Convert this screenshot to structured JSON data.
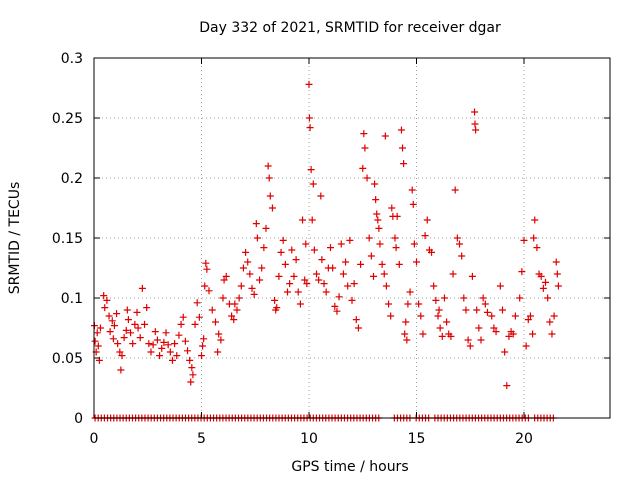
{
  "chart_data": {
    "type": "scatter",
    "title": "Day 332 of 2021, SRMTID for receiver dgar",
    "xlabel": "GPS time / hours",
    "ylabel": "SRMTID / TECUs",
    "xlim": [
      0,
      24
    ],
    "ylim": [
      0,
      0.3
    ],
    "xticks": [
      0,
      5,
      10,
      15,
      20
    ],
    "xtick_labels": [
      "0",
      "5",
      "10",
      "15",
      "20"
    ],
    "yticks": [
      0,
      0.05,
      0.1,
      0.15,
      0.2,
      0.25,
      0.3
    ],
    "ytick_labels": [
      "0",
      "0.05",
      "0.1",
      "0.15",
      "0.2",
      "0.25",
      "0.3"
    ],
    "grid": true,
    "marker": "+",
    "colors": {
      "series": "#e00000",
      "grid": "#a0a0a0",
      "axes": "#000000"
    },
    "series": [
      {
        "name": "SRMTID",
        "points": [
          [
            0.02,
            0.077
          ],
          [
            0.05,
            0.064
          ],
          [
            0.1,
            0.055
          ],
          [
            0.15,
            0.071
          ],
          [
            0.2,
            0.06
          ],
          [
            0.25,
            0.048
          ],
          [
            0.3,
            0.075
          ],
          [
            0.45,
            0.102
          ],
          [
            0.5,
            0.092
          ],
          [
            0.6,
            0.098
          ],
          [
            0.7,
            0.085
          ],
          [
            0.75,
            0.072
          ],
          [
            0.85,
            0.081
          ],
          [
            0.9,
            0.066
          ],
          [
            0.95,
            0.077
          ],
          [
            1.05,
            0.087
          ],
          [
            1.1,
            0.062
          ],
          [
            1.2,
            0.055
          ],
          [
            1.25,
            0.04
          ],
          [
            1.3,
            0.052
          ],
          [
            1.4,
            0.067
          ],
          [
            1.5,
            0.073
          ],
          [
            1.55,
            0.09
          ],
          [
            1.6,
            0.082
          ],
          [
            1.7,
            0.071
          ],
          [
            1.8,
            0.062
          ],
          [
            1.9,
            0.078
          ],
          [
            2.0,
            0.088
          ],
          [
            2.05,
            0.075
          ],
          [
            2.15,
            0.067
          ],
          [
            2.25,
            0.108
          ],
          [
            2.35,
            0.078
          ],
          [
            2.45,
            0.092
          ],
          [
            2.55,
            0.062
          ],
          [
            2.65,
            0.055
          ],
          [
            2.75,
            0.061
          ],
          [
            2.85,
            0.072
          ],
          [
            2.95,
            0.065
          ],
          [
            3.05,
            0.052
          ],
          [
            3.15,
            0.058
          ],
          [
            3.25,
            0.063
          ],
          [
            3.35,
            0.071
          ],
          [
            3.45,
            0.061
          ],
          [
            3.55,
            0.055
          ],
          [
            3.65,
            0.048
          ],
          [
            3.75,
            0.062
          ],
          [
            3.85,
            0.052
          ],
          [
            3.95,
            0.069
          ],
          [
            4.05,
            0.078
          ],
          [
            4.15,
            0.084
          ],
          [
            4.25,
            0.064
          ],
          [
            4.35,
            0.056
          ],
          [
            4.45,
            0.048
          ],
          [
            4.5,
            0.03
          ],
          [
            4.55,
            0.042
          ],
          [
            4.6,
            0.036
          ],
          [
            4.7,
            0.078
          ],
          [
            4.8,
            0.096
          ],
          [
            4.9,
            0.084
          ],
          [
            5.0,
            0.052
          ],
          [
            5.05,
            0.06
          ],
          [
            5.1,
            0.066
          ],
          [
            5.15,
            0.11
          ],
          [
            5.2,
            0.129
          ],
          [
            5.25,
            0.124
          ],
          [
            5.35,
            0.106
          ],
          [
            5.5,
            0.09
          ],
          [
            5.65,
            0.08
          ],
          [
            5.75,
            0.055
          ],
          [
            5.8,
            0.07
          ],
          [
            5.9,
            0.065
          ],
          [
            6.0,
            0.1
          ],
          [
            6.05,
            0.115
          ],
          [
            6.15,
            0.118
          ],
          [
            6.3,
            0.095
          ],
          [
            6.4,
            0.085
          ],
          [
            6.5,
            0.082
          ],
          [
            6.55,
            0.095
          ],
          [
            6.65,
            0.09
          ],
          [
            6.75,
            0.1
          ],
          [
            6.85,
            0.11
          ],
          [
            6.95,
            0.125
          ],
          [
            7.05,
            0.138
          ],
          [
            7.15,
            0.13
          ],
          [
            7.25,
            0.12
          ],
          [
            7.35,
            0.108
          ],
          [
            7.45,
            0.103
          ],
          [
            7.55,
            0.162
          ],
          [
            7.6,
            0.15
          ],
          [
            7.7,
            0.115
          ],
          [
            7.8,
            0.125
          ],
          [
            7.9,
            0.142
          ],
          [
            8.0,
            0.158
          ],
          [
            8.1,
            0.21
          ],
          [
            8.15,
            0.2
          ],
          [
            8.2,
            0.185
          ],
          [
            8.3,
            0.175
          ],
          [
            8.4,
            0.098
          ],
          [
            8.45,
            0.09
          ],
          [
            8.5,
            0.092
          ],
          [
            8.6,
            0.118
          ],
          [
            8.7,
            0.138
          ],
          [
            8.8,
            0.148
          ],
          [
            8.9,
            0.128
          ],
          [
            9.0,
            0.105
          ],
          [
            9.1,
            0.112
          ],
          [
            9.2,
            0.14
          ],
          [
            9.3,
            0.118
          ],
          [
            9.4,
            0.132
          ],
          [
            9.5,
            0.105
          ],
          [
            9.6,
            0.095
          ],
          [
            9.7,
            0.165
          ],
          [
            9.8,
            0.115
          ],
          [
            9.85,
            0.145
          ],
          [
            9.9,
            0.112
          ],
          [
            10.0,
            0.278
          ],
          [
            10.02,
            0.25
          ],
          [
            10.05,
            0.242
          ],
          [
            10.1,
            0.207
          ],
          [
            10.15,
            0.165
          ],
          [
            10.2,
            0.195
          ],
          [
            10.25,
            0.14
          ],
          [
            10.35,
            0.12
          ],
          [
            10.45,
            0.115
          ],
          [
            10.55,
            0.185
          ],
          [
            10.6,
            0.132
          ],
          [
            10.7,
            0.112
          ],
          [
            10.8,
            0.105
          ],
          [
            10.9,
            0.125
          ],
          [
            11.0,
            0.142
          ],
          [
            11.1,
            0.125
          ],
          [
            11.2,
            0.093
          ],
          [
            11.3,
            0.089
          ],
          [
            11.4,
            0.101
          ],
          [
            11.5,
            0.145
          ],
          [
            11.6,
            0.12
          ],
          [
            11.7,
            0.13
          ],
          [
            11.8,
            0.11
          ],
          [
            11.9,
            0.148
          ],
          [
            12.0,
            0.098
          ],
          [
            12.1,
            0.112
          ],
          [
            12.2,
            0.082
          ],
          [
            12.3,
            0.075
          ],
          [
            12.4,
            0.128
          ],
          [
            12.5,
            0.208
          ],
          [
            12.55,
            0.237
          ],
          [
            12.6,
            0.225
          ],
          [
            12.7,
            0.2
          ],
          [
            12.8,
            0.15
          ],
          [
            12.9,
            0.135
          ],
          [
            13.0,
            0.118
          ],
          [
            13.05,
            0.195
          ],
          [
            13.1,
            0.182
          ],
          [
            13.15,
            0.17
          ],
          [
            13.2,
            0.165
          ],
          [
            13.25,
            0.158
          ],
          [
            13.3,
            0.145
          ],
          [
            13.4,
            0.128
          ],
          [
            13.5,
            0.12
          ],
          [
            13.55,
            0.235
          ],
          [
            13.6,
            0.11
          ],
          [
            13.7,
            0.095
          ],
          [
            13.8,
            0.085
          ],
          [
            13.85,
            0.175
          ],
          [
            13.9,
            0.168
          ],
          [
            14.0,
            0.15
          ],
          [
            14.05,
            0.142
          ],
          [
            14.1,
            0.168
          ],
          [
            14.2,
            0.128
          ],
          [
            14.3,
            0.24
          ],
          [
            14.35,
            0.225
          ],
          [
            14.4,
            0.212
          ],
          [
            14.45,
            0.07
          ],
          [
            14.5,
            0.08
          ],
          [
            14.55,
            0.065
          ],
          [
            14.6,
            0.095
          ],
          [
            14.7,
            0.105
          ],
          [
            14.8,
            0.19
          ],
          [
            14.85,
            0.178
          ],
          [
            14.9,
            0.145
          ],
          [
            15.0,
            0.13
          ],
          [
            15.1,
            0.095
          ],
          [
            15.2,
            0.085
          ],
          [
            15.3,
            0.07
          ],
          [
            15.4,
            0.152
          ],
          [
            15.5,
            0.165
          ],
          [
            15.6,
            0.14
          ],
          [
            15.7,
            0.138
          ],
          [
            15.8,
            0.11
          ],
          [
            15.9,
            0.098
          ],
          [
            16.0,
            0.085
          ],
          [
            16.05,
            0.09
          ],
          [
            16.1,
            0.075
          ],
          [
            16.2,
            0.068
          ],
          [
            16.3,
            0.1
          ],
          [
            16.4,
            0.08
          ],
          [
            16.5,
            0.07
          ],
          [
            16.6,
            0.068
          ],
          [
            16.7,
            0.12
          ],
          [
            16.8,
            0.19
          ],
          [
            16.9,
            0.15
          ],
          [
            17.0,
            0.145
          ],
          [
            17.1,
            0.135
          ],
          [
            17.2,
            0.1
          ],
          [
            17.3,
            0.09
          ],
          [
            17.4,
            0.065
          ],
          [
            17.5,
            0.06
          ],
          [
            17.6,
            0.118
          ],
          [
            17.7,
            0.255
          ],
          [
            17.72,
            0.245
          ],
          [
            17.75,
            0.24
          ],
          [
            17.8,
            0.09
          ],
          [
            17.9,
            0.075
          ],
          [
            18.0,
            0.065
          ],
          [
            18.1,
            0.1
          ],
          [
            18.2,
            0.095
          ],
          [
            18.3,
            0.088
          ],
          [
            18.5,
            0.085
          ],
          [
            18.6,
            0.075
          ],
          [
            18.7,
            0.072
          ],
          [
            18.9,
            0.11
          ],
          [
            19.0,
            0.09
          ],
          [
            19.1,
            0.055
          ],
          [
            19.2,
            0.027
          ],
          [
            19.3,
            0.068
          ],
          [
            19.4,
            0.072
          ],
          [
            19.5,
            0.07
          ],
          [
            19.6,
            0.085
          ],
          [
            19.8,
            0.1
          ],
          [
            19.9,
            0.122
          ],
          [
            20.0,
            0.148
          ],
          [
            20.1,
            0.06
          ],
          [
            20.2,
            0.082
          ],
          [
            20.3,
            0.085
          ],
          [
            20.4,
            0.07
          ],
          [
            20.45,
            0.15
          ],
          [
            20.5,
            0.165
          ],
          [
            20.6,
            0.142
          ],
          [
            20.7,
            0.12
          ],
          [
            20.8,
            0.118
          ],
          [
            20.9,
            0.108
          ],
          [
            21.0,
            0.113
          ],
          [
            21.1,
            0.1
          ],
          [
            21.2,
            0.08
          ],
          [
            21.3,
            0.07
          ],
          [
            21.4,
            0.085
          ],
          [
            21.5,
            0.13
          ],
          [
            21.55,
            0.12
          ],
          [
            21.6,
            0.11
          ]
        ]
      }
    ],
    "zero_band": {
      "y": 0,
      "x_start": 0.05,
      "x_end": 21.5,
      "x_step": 0.145,
      "gaps": [
        [
          13.25,
          13.95
        ],
        [
          14.75,
          14.95
        ],
        [
          15.6,
          15.75
        ],
        [
          20.25,
          20.4
        ]
      ]
    }
  }
}
